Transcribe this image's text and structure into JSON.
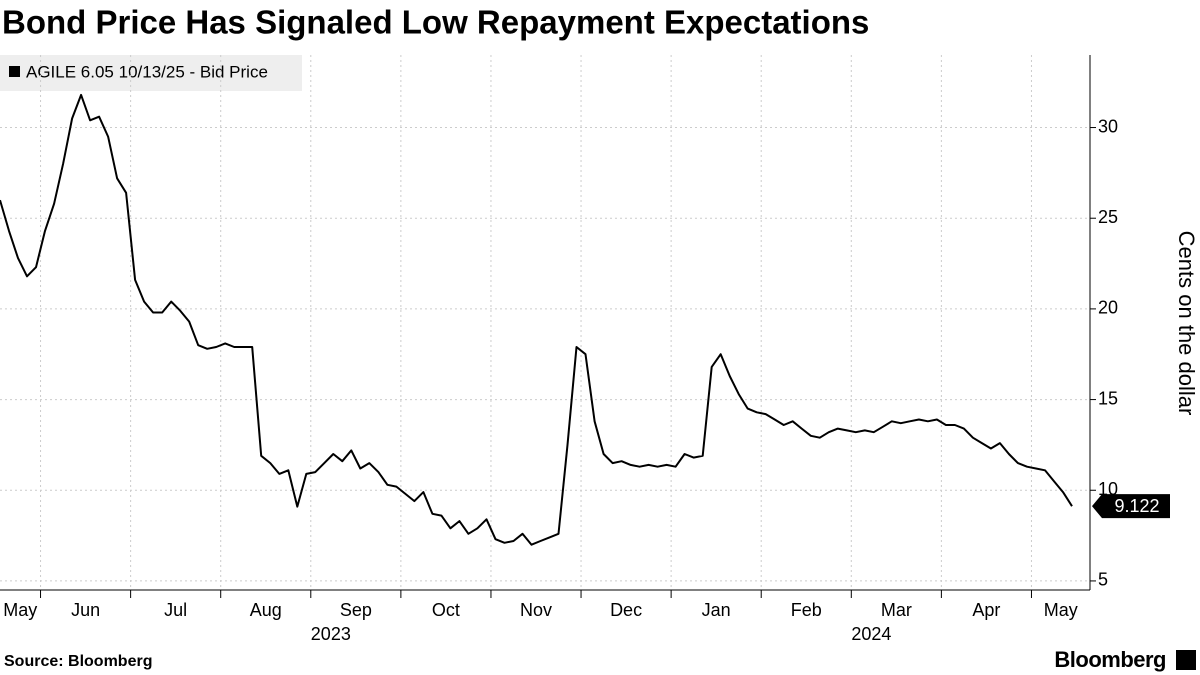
{
  "chart_data": {
    "type": "line",
    "title": "Bond Price Has Signaled Low Repayment Expectations",
    "y_label": "Cents on the dollar",
    "source": "Source: Bloomberg",
    "brand": "Bloomberg",
    "x": [
      "2023-05",
      "2023-05",
      "2023-05",
      "2023-05",
      "2023-05",
      "2023-06",
      "2023-06",
      "2023-06",
      "2023-06",
      "2023-06",
      "2023-06",
      "2023-06",
      "2023-06",
      "2023-06",
      "2023-06",
      "2023-07",
      "2023-07",
      "2023-07",
      "2023-07",
      "2023-07",
      "2023-07",
      "2023-07",
      "2023-07",
      "2023-07",
      "2023-07",
      "2023-08",
      "2023-08",
      "2023-08",
      "2023-08",
      "2023-08",
      "2023-08",
      "2023-08",
      "2023-08",
      "2023-08",
      "2023-08",
      "2023-09",
      "2023-09",
      "2023-09",
      "2023-09",
      "2023-09",
      "2023-09",
      "2023-09",
      "2023-09",
      "2023-09",
      "2023-09",
      "2023-10",
      "2023-10",
      "2023-10",
      "2023-10",
      "2023-10",
      "2023-10",
      "2023-10",
      "2023-10",
      "2023-10",
      "2023-10",
      "2023-11",
      "2023-11",
      "2023-11",
      "2023-11",
      "2023-11",
      "2023-11",
      "2023-11",
      "2023-11",
      "2023-11",
      "2023-11",
      "2023-12",
      "2023-12",
      "2023-12",
      "2023-12",
      "2023-12",
      "2023-12",
      "2023-12",
      "2023-12",
      "2023-12",
      "2023-12",
      "2024-01",
      "2024-01",
      "2024-01",
      "2024-01",
      "2024-01",
      "2024-01",
      "2024-01",
      "2024-01",
      "2024-01",
      "2024-01",
      "2024-02",
      "2024-02",
      "2024-02",
      "2024-02",
      "2024-02",
      "2024-02",
      "2024-02",
      "2024-02",
      "2024-02",
      "2024-02",
      "2024-03",
      "2024-03",
      "2024-03",
      "2024-03",
      "2024-03",
      "2024-03",
      "2024-03",
      "2024-03",
      "2024-03",
      "2024-03",
      "2024-04",
      "2024-04",
      "2024-04",
      "2024-04",
      "2024-04",
      "2024-04",
      "2024-04",
      "2024-04",
      "2024-04",
      "2024-04",
      "2024-05",
      "2024-05",
      "2024-05",
      "2024-05",
      "2024-05"
    ],
    "series": [
      {
        "name": "AGILE 6.05 10/13/25 - Bid Price",
        "color": "#000000",
        "values": [
          26.0,
          24.3,
          22.8,
          21.8,
          22.3,
          24.3,
          25.8,
          28.0,
          30.5,
          31.8,
          30.4,
          30.6,
          29.5,
          27.2,
          26.4,
          21.6,
          20.4,
          19.8,
          19.8,
          20.4,
          19.9,
          19.3,
          18.0,
          17.8,
          17.9,
          18.1,
          17.9,
          17.9,
          17.9,
          11.9,
          11.5,
          10.9,
          11.1,
          9.1,
          10.9,
          11.0,
          11.5,
          12.0,
          11.6,
          12.2,
          11.2,
          11.5,
          11.0,
          10.3,
          10.2,
          9.8,
          9.4,
          9.9,
          8.7,
          8.6,
          7.9,
          8.3,
          7.6,
          7.9,
          8.4,
          7.3,
          7.1,
          7.2,
          7.6,
          7.0,
          7.2,
          7.4,
          7.6,
          12.5,
          17.9,
          17.5,
          13.8,
          12.0,
          11.5,
          11.6,
          11.4,
          11.3,
          11.4,
          11.3,
          11.4,
          11.3,
          12.0,
          11.8,
          11.9,
          16.8,
          17.5,
          16.3,
          15.3,
          14.5,
          14.3,
          14.2,
          13.9,
          13.6,
          13.8,
          13.4,
          13.0,
          12.9,
          13.2,
          13.4,
          13.3,
          13.2,
          13.3,
          13.2,
          13.5,
          13.8,
          13.7,
          13.8,
          13.9,
          13.8,
          13.9,
          13.6,
          13.6,
          13.4,
          12.9,
          12.6,
          12.3,
          12.6,
          12.0,
          11.5,
          11.3,
          11.2,
          11.1,
          10.5,
          9.9,
          9.122
        ]
      }
    ],
    "xticks": [
      {
        "value": "2023-05",
        "label": "May"
      },
      {
        "value": "2023-06",
        "label": "Jun"
      },
      {
        "value": "2023-07",
        "label": "Jul"
      },
      {
        "value": "2023-08",
        "label": "Aug"
      },
      {
        "value": "2023-09",
        "label": "Sep"
      },
      {
        "value": "2023-10",
        "label": "Oct"
      },
      {
        "value": "2023-11",
        "label": "Nov"
      },
      {
        "value": "2023-12",
        "label": "Dec"
      },
      {
        "value": "2024-01",
        "label": "Jan"
      },
      {
        "value": "2024-02",
        "label": "Feb"
      },
      {
        "value": "2024-03",
        "label": "Mar"
      },
      {
        "value": "2024-04",
        "label": "Apr"
      },
      {
        "value": "2024-05",
        "label": "May"
      }
    ],
    "year_labels": [
      {
        "value": "2023-09",
        "label": "2023"
      },
      {
        "value": "2024-03",
        "label": "2024"
      }
    ],
    "ylim": [
      4.5,
      34
    ],
    "yticks": [
      5,
      10,
      15,
      20,
      25,
      30
    ],
    "grid": true
  }
}
